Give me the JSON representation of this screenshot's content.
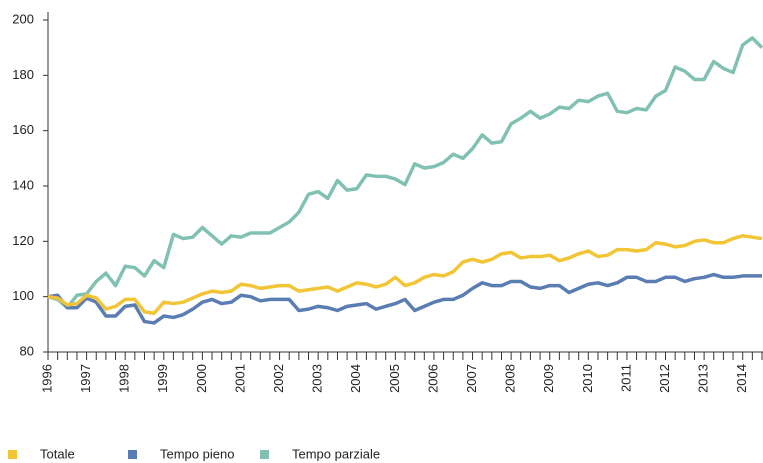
{
  "chart_data": {
    "type": "line",
    "categories": [
      "1996",
      null,
      null,
      null,
      "1997",
      null,
      null,
      null,
      "1998",
      null,
      null,
      null,
      "1999",
      null,
      null,
      null,
      "2000",
      null,
      null,
      null,
      "2001",
      null,
      null,
      null,
      "2002",
      null,
      null,
      null,
      "2003",
      null,
      null,
      null,
      "2004",
      null,
      null,
      null,
      "2005",
      null,
      null,
      null,
      "2006",
      null,
      null,
      null,
      "2007",
      null,
      null,
      null,
      "2008",
      null,
      null,
      null,
      "2009",
      null,
      null,
      null,
      "2010",
      null,
      null,
      null,
      "2011",
      null,
      null,
      null,
      "2012",
      null,
      null,
      null,
      "2013",
      null,
      null,
      null,
      "2014",
      null,
      null
    ],
    "series": [
      {
        "name": "Totale",
        "color": "#f2c537",
        "values": [
          100,
          99.5,
          97,
          97.5,
          100.5,
          99.5,
          95.5,
          96.5,
          99,
          99,
          94.5,
          94,
          98,
          97.5,
          98,
          99.5,
          101,
          102,
          101.5,
          102,
          104.5,
          104,
          103,
          103.5,
          104,
          104,
          102,
          102.5,
          103,
          103.5,
          102,
          103.5,
          105,
          104.5,
          103.5,
          104.5,
          107,
          104,
          105,
          107,
          108,
          107.5,
          109,
          112.5,
          113.5,
          112.5,
          113.5,
          115.5,
          116,
          114,
          114.5,
          114.5,
          115,
          113,
          114,
          115.5,
          116.5,
          114.5,
          115,
          117,
          117,
          116.5,
          117,
          119.5,
          119,
          118,
          118.5,
          120,
          120.5,
          119.5,
          119.5,
          121,
          122,
          121.5,
          121
        ]
      },
      {
        "name": "Tempo pieno",
        "color": "#5a7db3",
        "values": [
          100,
          100.5,
          96,
          96,
          99.5,
          98,
          93,
          93,
          96.5,
          97,
          91,
          90.5,
          93,
          92.5,
          93.5,
          95.5,
          98,
          99,
          97.5,
          98,
          100.5,
          100,
          98.5,
          99,
          99,
          99,
          95,
          95.5,
          96.5,
          96,
          95,
          96.5,
          97,
          97.5,
          95.5,
          96.5,
          97.5,
          99,
          95,
          96.5,
          98,
          99,
          99,
          100.5,
          103,
          105,
          104,
          104,
          105.5,
          105.5,
          103.5,
          103,
          104,
          104,
          101.5,
          103,
          104.5,
          105,
          104,
          105,
          107,
          107,
          105.5,
          105.5,
          107,
          107,
          105.5,
          106.5,
          107,
          108,
          107,
          107,
          107.5,
          107.5,
          107.5
        ]
      },
      {
        "name": "Tempo parziale",
        "color": "#80c1b3",
        "values": [
          100,
          99,
          96,
          100.5,
          101,
          105.5,
          108.5,
          104,
          111,
          110.5,
          107.5,
          113,
          110.5,
          122.5,
          121,
          121.5,
          125,
          122,
          119,
          122,
          121.5,
          123,
          123,
          123,
          125,
          127,
          130.5,
          137,
          138,
          135.5,
          142,
          138.5,
          139,
          144,
          143.5,
          143.5,
          142.5,
          140.5,
          148,
          146.5,
          147,
          148.5,
          151.5,
          150,
          153.5,
          158.5,
          155.5,
          156,
          162.5,
          164.5,
          167,
          164.5,
          166,
          168.5,
          168,
          171,
          170.5,
          172.5,
          173.5,
          167,
          166.5,
          168,
          167.5,
          172.5,
          174.5,
          183,
          181.5,
          178.5,
          178.5,
          185,
          182.5,
          181,
          191,
          193.5,
          190
        ]
      }
    ],
    "ylim": [
      80,
      200
    ],
    "yticks": [
      80,
      100,
      120,
      140,
      160,
      180,
      200
    ],
    "grid": false,
    "legend": "bottom-left"
  }
}
